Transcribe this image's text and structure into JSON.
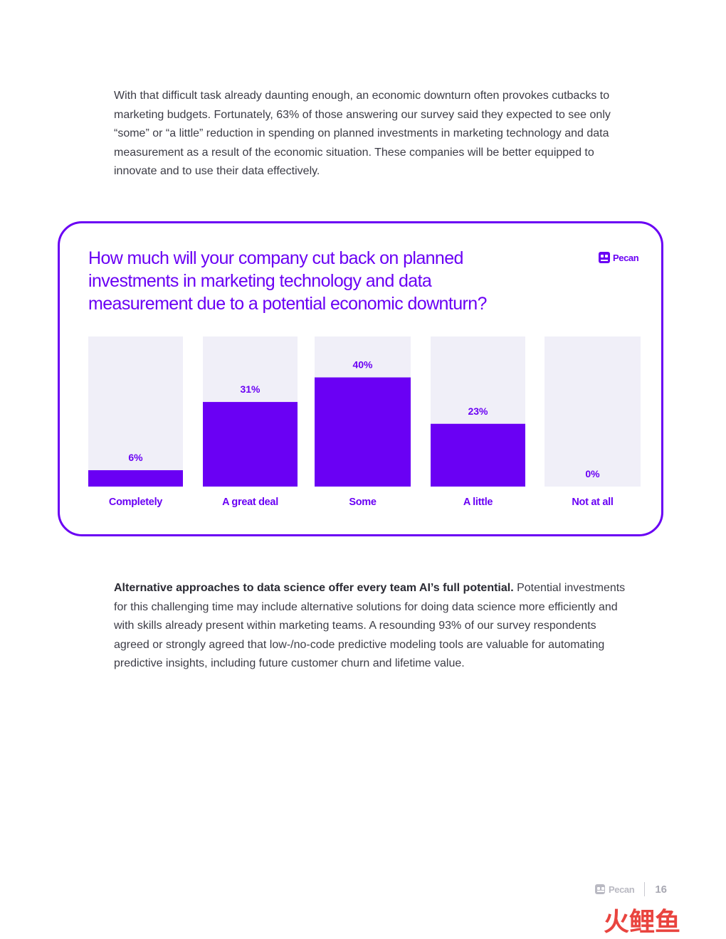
{
  "intro_paragraph": "With that difficult task already daunting enough, an economic downturn often provokes cutbacks to marketing budgets. Fortunately, 63% of those answering our survey said they expected to see only “some” or “a little” reduction in spending on planned investments in marketing technology and data measurement as a result of the economic situation. These companies will be better equipped to innovate and to use their data effectively.",
  "closing_paragraph": {
    "lead": "Alternative approaches to data science offer every team AI’s full potential.",
    "body": " Potential investments for this challenging time may include alternative solutions for doing data science more efficiently and with skills already present within marketing teams. A resounding 93% of our survey respondents agreed or strongly agreed that low-/no-code predictive modeling tools are valuable for automating predictive insights, including future customer churn and lifetime value."
  },
  "brand": {
    "name": "Pecan",
    "icon": "pecan-logo-icon",
    "color": "#6a00f4"
  },
  "footer": {
    "brand_name": "Pecan",
    "page_number": "16"
  },
  "watermark": {
    "text": "火鲤鱼",
    "colors": [
      "#f06a6a",
      "#e9443f"
    ]
  },
  "chart_data": {
    "type": "bar",
    "title": "How much will your company cut back on planned investments in marketing technology and data measurement due to a potential economic downturn?",
    "categories": [
      "Completely",
      "A great deal",
      "Some",
      "A little",
      "Not at all"
    ],
    "values": [
      6,
      31,
      40,
      23,
      0
    ],
    "value_labels": [
      "6%",
      "31%",
      "40%",
      "23%",
      "0%"
    ],
    "unit": "%",
    "ylim": [
      0,
      55
    ],
    "bar_color": "#6a00f4",
    "track_color": "#f0eff8",
    "grid": false
  }
}
